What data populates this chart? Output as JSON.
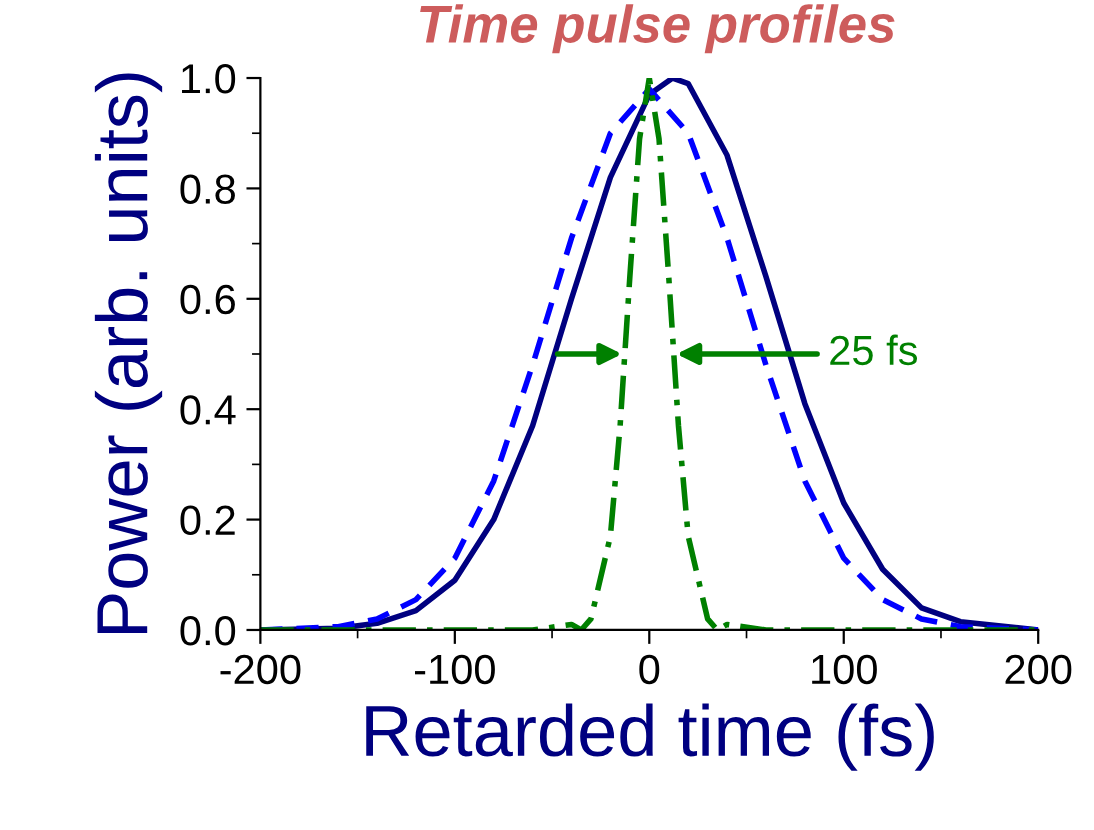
{
  "chart_data": {
    "type": "line",
    "title": "Time pulse profiles",
    "xlabel": "Retarded time (fs)",
    "ylabel": "Power (arb. units)",
    "xlim": [
      -200,
      200
    ],
    "xticks": [
      -200,
      -100,
      0,
      100,
      200
    ],
    "ylim": [
      0,
      1.0
    ],
    "yticks": [
      {
        "value": 0,
        "label": "0.0"
      },
      0.2,
      0.4,
      0.6,
      0.8,
      {
        "value": 1,
        "label": "1.0"
      }
    ],
    "grid": false,
    "legend": false,
    "marker": "none",
    "series": [
      {
        "color": "#000080",
        "line_style": "solid",
        "x": [
          -200,
          -160,
          -140,
          -120,
          -100,
          -80,
          -60,
          -40,
          -20,
          0,
          12,
          20,
          40,
          60,
          80,
          100,
          120,
          140,
          160,
          200
        ],
        "values": [
          0.0,
          0.003,
          0.012,
          0.035,
          0.09,
          0.2,
          0.37,
          0.6,
          0.82,
          0.97,
          1.0,
          0.99,
          0.86,
          0.64,
          0.41,
          0.23,
          0.11,
          0.04,
          0.015,
          0.0
        ]
      },
      {
        "color": "#0000ff",
        "line_style": "dashed",
        "x": [
          -200,
          -160,
          -140,
          -120,
          -100,
          -80,
          -60,
          -40,
          -20,
          0,
          20,
          40,
          60,
          80,
          100,
          120,
          140,
          160,
          200
        ],
        "values": [
          0.0,
          0.006,
          0.02,
          0.055,
          0.13,
          0.27,
          0.48,
          0.71,
          0.9,
          0.98,
          0.9,
          0.71,
          0.48,
          0.27,
          0.13,
          0.055,
          0.02,
          0.006,
          0.0
        ]
      },
      {
        "color": "#008000",
        "line_style": "dashdot",
        "x": [
          -200,
          -60,
          -40,
          -35,
          -30,
          -20,
          -15,
          -10,
          -5,
          0,
          5,
          10,
          15,
          20,
          30,
          35,
          40,
          60,
          200
        ],
        "values": [
          0.0,
          0.0,
          0.01,
          0.0,
          0.02,
          0.17,
          0.37,
          0.64,
          0.89,
          1.0,
          0.89,
          0.64,
          0.37,
          0.17,
          0.02,
          0.0,
          0.01,
          0.0,
          0.0
        ]
      }
    ],
    "annotations": [
      "25 fs"
    ]
  }
}
